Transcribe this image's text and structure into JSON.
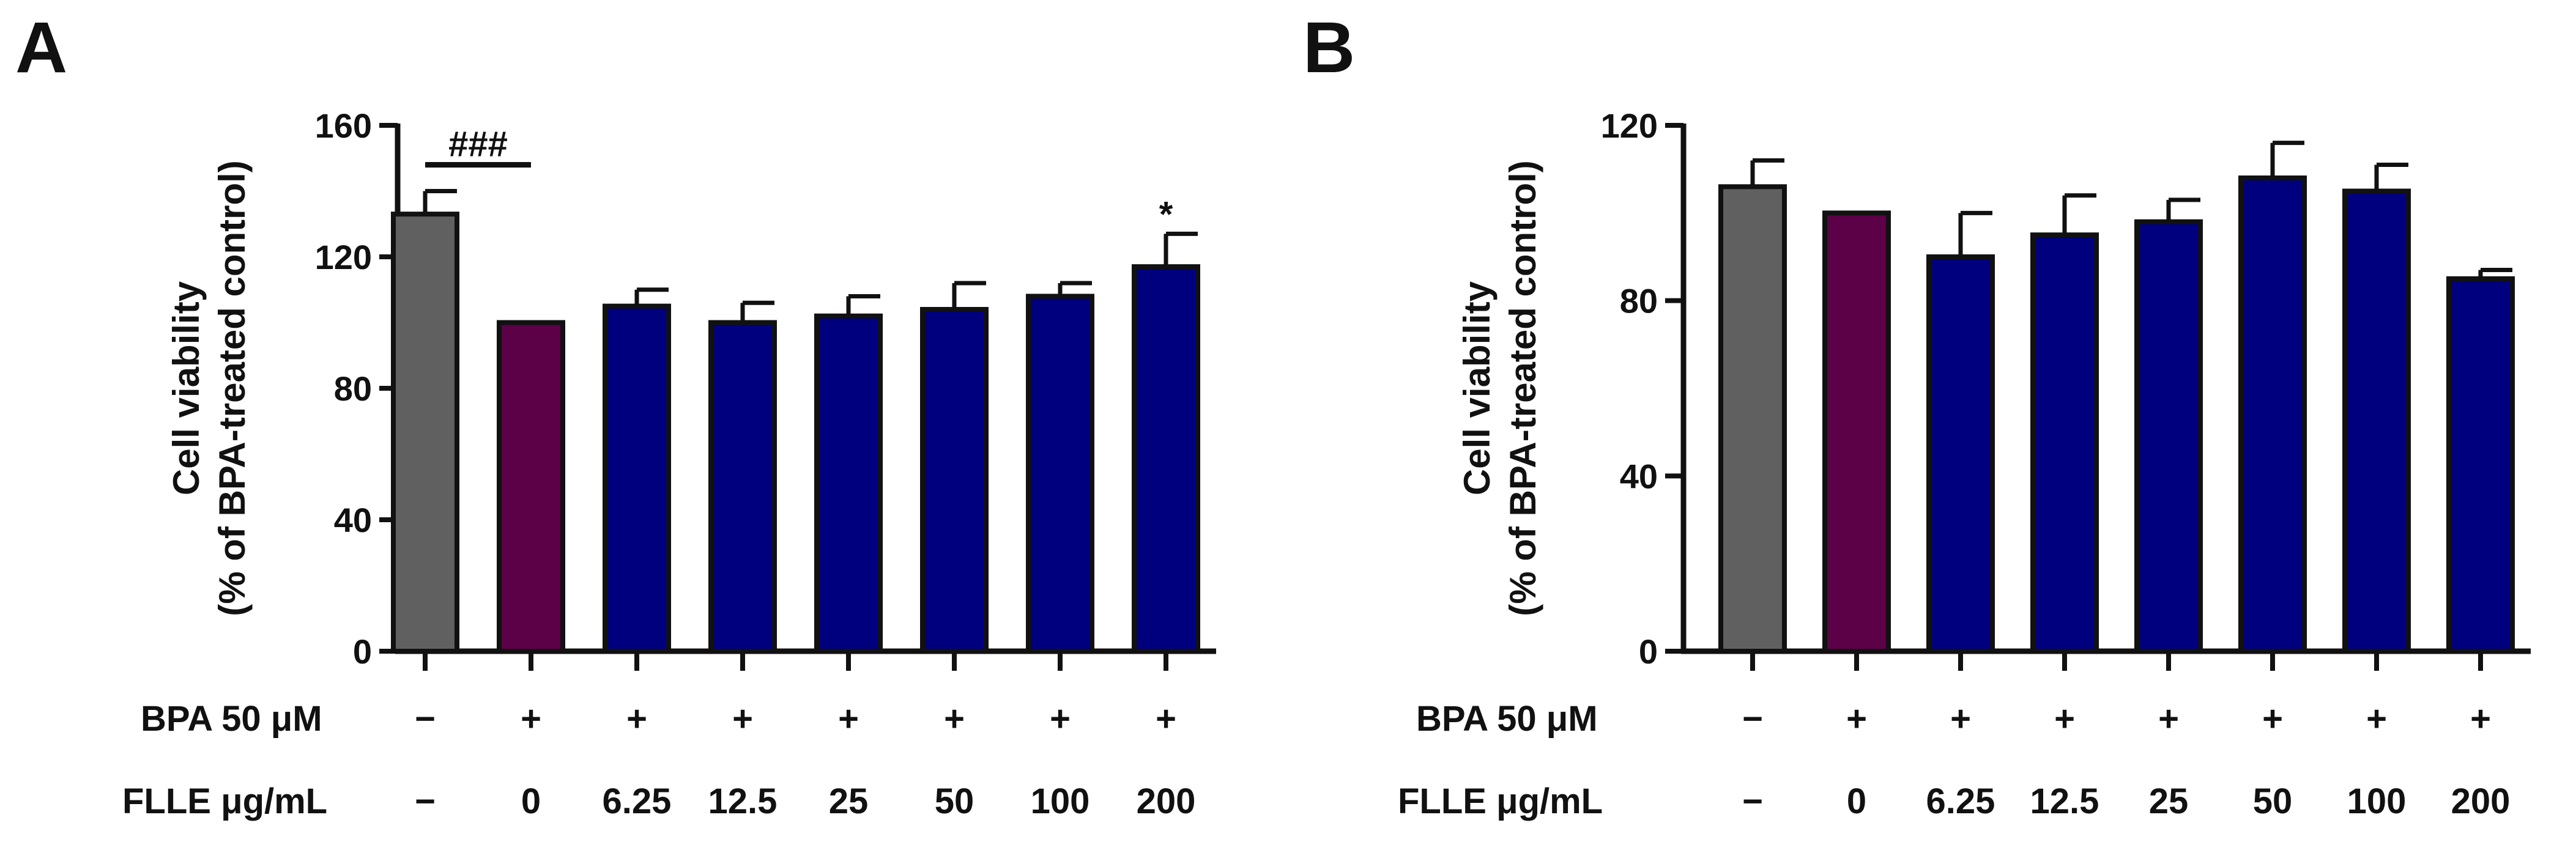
{
  "chart_data": [
    {
      "panel": "A",
      "type": "bar",
      "ylabel_line1": "Cell viability",
      "ylabel_line2": "(% of BPA-treated control)",
      "ylim": [
        0,
        160
      ],
      "yticks": [
        0,
        40,
        80,
        120,
        160
      ],
      "bpa_label": "BPA 50 μM",
      "flle_label": "FLLE μg/mL",
      "bpa": [
        "−",
        "+",
        "+",
        "+",
        "+",
        "+",
        "+",
        "+"
      ],
      "flle": [
        "−",
        "0",
        "6.25",
        "12.5",
        "25",
        "50",
        "100",
        "200"
      ],
      "values": [
        133,
        100,
        105,
        100,
        102,
        104,
        108,
        117
      ],
      "errors": [
        7,
        0,
        5,
        6,
        6,
        8,
        4,
        10
      ],
      "colors": [
        "#606060",
        "#5c0048",
        "#00007e",
        "#00007e",
        "#00007e",
        "#00007e",
        "#00007e",
        "#00007e"
      ],
      "annotations": [
        {
          "text": "###",
          "bars": [
            0,
            1
          ],
          "type": "bracket",
          "y": 148
        },
        {
          "text": "*",
          "bar": 7,
          "type": "star"
        }
      ]
    },
    {
      "panel": "B",
      "type": "bar",
      "ylabel_line1": "Cell viability",
      "ylabel_line2": "(% of BPA-treated control)",
      "ylim": [
        0,
        120
      ],
      "yticks": [
        0,
        40,
        80,
        120
      ],
      "bpa_label": "BPA 50 μM",
      "flle_label": "FLLE μg/mL",
      "bpa": [
        "−",
        "+",
        "+",
        "+",
        "+",
        "+",
        "+",
        "+"
      ],
      "flle": [
        "−",
        "0",
        "6.25",
        "12.5",
        "25",
        "50",
        "100",
        "200"
      ],
      "values": [
        106,
        100,
        90,
        95,
        98,
        108,
        105,
        85
      ],
      "errors": [
        6,
        0,
        10,
        9,
        5,
        8,
        6,
        2
      ],
      "colors": [
        "#606060",
        "#5c0048",
        "#00007e",
        "#00007e",
        "#00007e",
        "#00007e",
        "#00007e",
        "#00007e"
      ],
      "annotations": []
    }
  ]
}
